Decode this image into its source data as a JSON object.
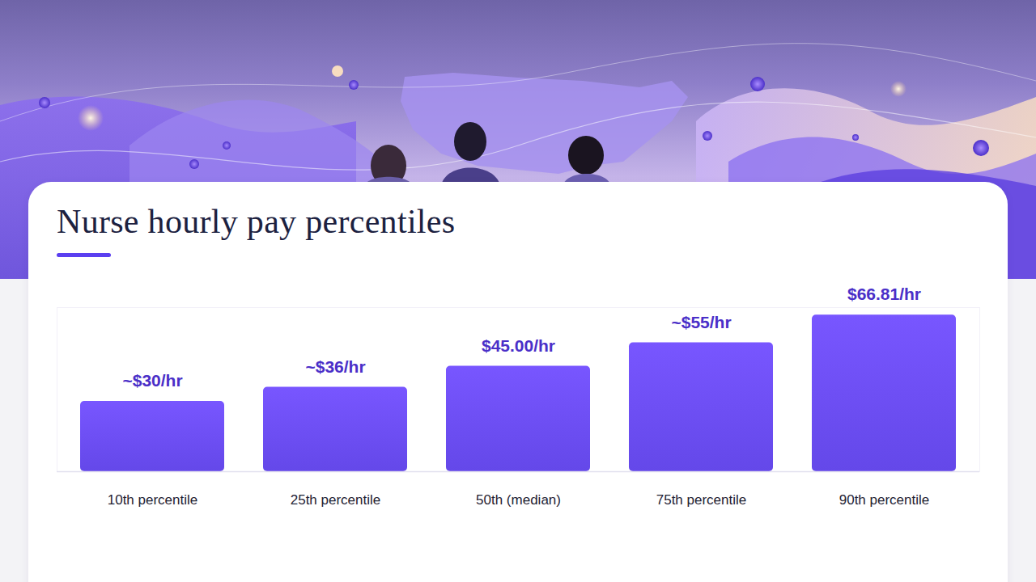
{
  "chart_data": {
    "type": "bar",
    "title": "Nurse hourly pay percentiles",
    "categories": [
      "10th percentile",
      "25th percentile",
      "50th (median)",
      "75th percentile",
      "90th percentile"
    ],
    "values": [
      30,
      36,
      45,
      55,
      66.81
    ],
    "value_labels": [
      "~$30/hr",
      "~$36/hr",
      "$45.00/hr",
      "~$55/hr",
      "$66.81/hr"
    ],
    "color": "#6a4cf6",
    "ylim": [
      0,
      70
    ],
    "yticks": [],
    "grid": false,
    "data_labels": true,
    "tick_labels": "x"
  }
}
